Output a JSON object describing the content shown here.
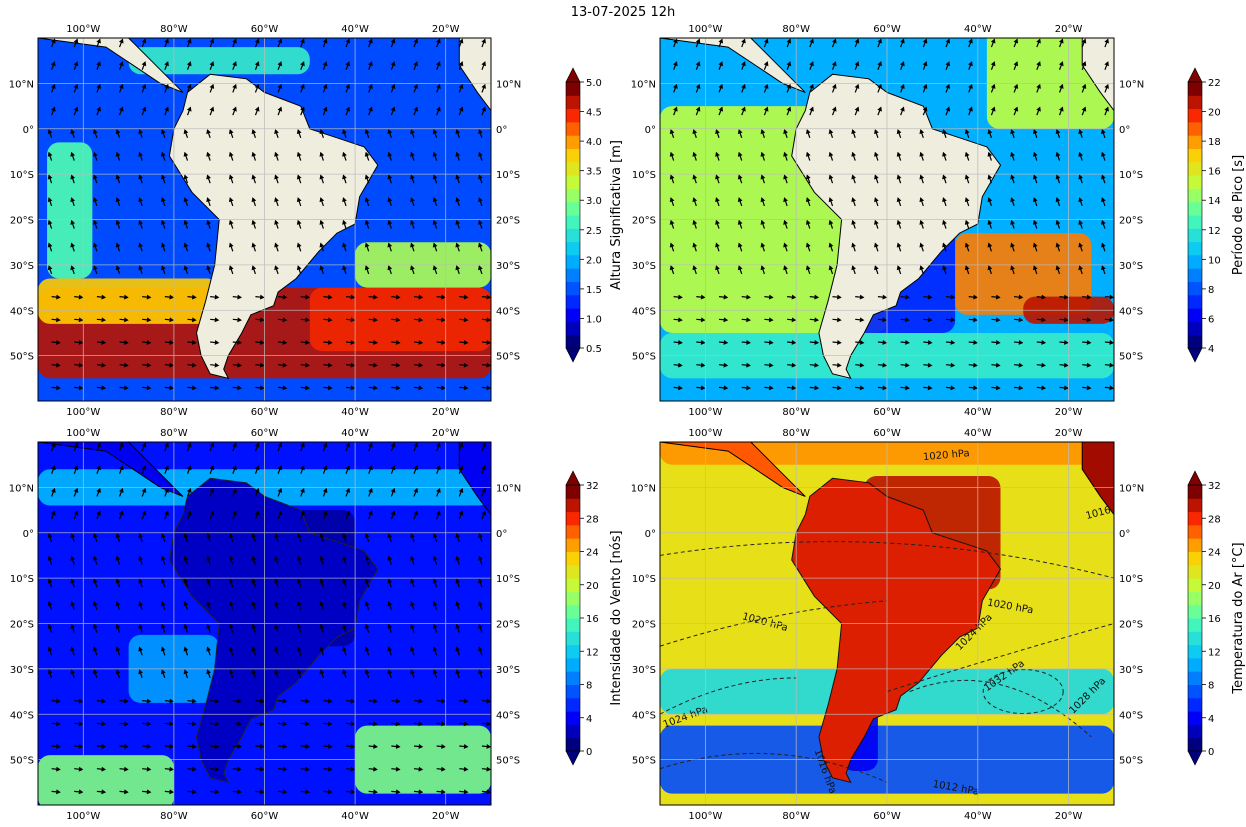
{
  "title": "13-07-2025 12h",
  "lon_labels": [
    "100°W",
    "80°W",
    "60°W",
    "40°W",
    "20°W"
  ],
  "lat_labels": [
    "10°N",
    "0°",
    "10°S",
    "20°S",
    "30°S",
    "40°S",
    "50°S"
  ],
  "panels": [
    {
      "id": "altura",
      "colorbar_label": "Altura Significativa [m]",
      "ticks": [
        "0.5",
        "1.0",
        "1.5",
        "2.0",
        "2.5",
        "3.0",
        "3.5",
        "4.0",
        "4.5",
        "5.0"
      ],
      "contour_labels": []
    },
    {
      "id": "periodo",
      "colorbar_label": "Período de Pico [s]",
      "ticks": [
        "4",
        "6",
        "8",
        "10",
        "12",
        "14",
        "16",
        "18",
        "20",
        "22"
      ],
      "contour_labels": []
    },
    {
      "id": "vento",
      "colorbar_label": "Intensidade do Vento [nós]",
      "ticks": [
        "0",
        "4",
        "8",
        "12",
        "16",
        "20",
        "24",
        "28",
        "32"
      ],
      "contour_labels": []
    },
    {
      "id": "temperatura",
      "colorbar_label": "Temperatura do Ar [°C]",
      "ticks": [
        "0",
        "4",
        "8",
        "12",
        "16",
        "20",
        "24",
        "28",
        "32"
      ],
      "contour_labels": [
        "1020 hPa",
        "1016 hPa",
        "1020 hPa",
        "1020 hPa",
        "1024 hPa",
        "1032 hPa",
        "1028 hPa",
        "1024 hPa",
        "1016 hPa",
        "1012 hPa"
      ]
    }
  ]
}
